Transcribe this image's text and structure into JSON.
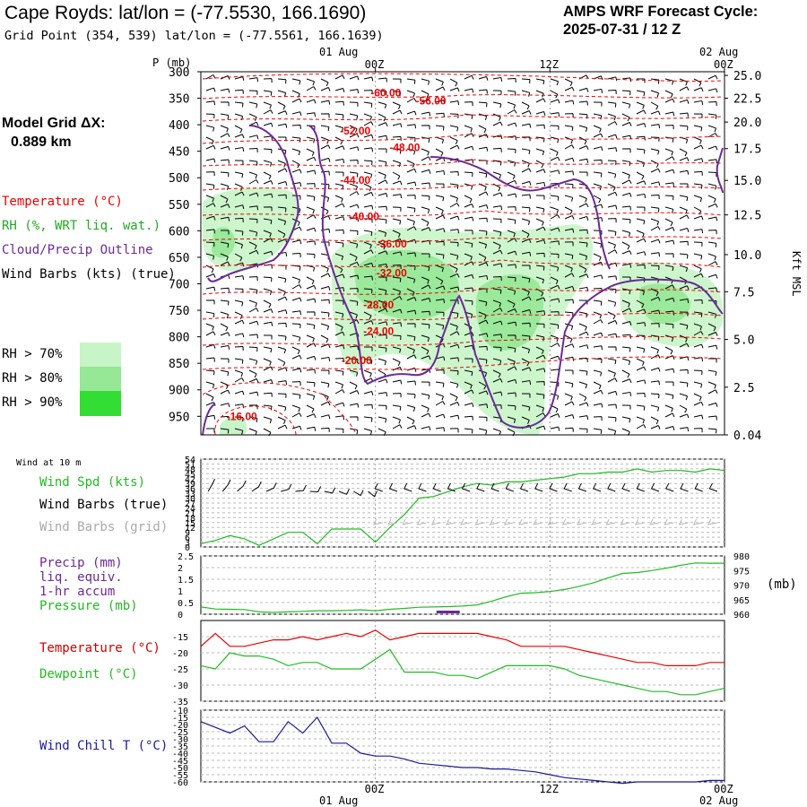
{
  "header": {
    "title": "Cape Royds:  lat/lon = (-77.5530, 166.1690)",
    "subtitle": "Grid Point (354, 539) lat/lon = (-77.5561, 166.1639)",
    "cycle_line1": "AMPS WRF Forecast Cycle:",
    "cycle_line2": "2025-07-31 / 12  Z"
  },
  "model_grid": {
    "line1": "Model Grid ΔX:",
    "line2": "0.889 km"
  },
  "legend": {
    "temperature": "Temperature (°C)",
    "rh": "RH (%, WRT liq. wat.)",
    "cloud": "Cloud/Precip Outline",
    "wind": "Wind Barbs (kts) (true)",
    "rh70": "RH > 70%",
    "rh80": "RH > 80%",
    "rh90": "RH > 90%"
  },
  "colors": {
    "temp": "#ee0000",
    "rh70": "#c8f5c8",
    "rh80": "#96e896",
    "rh90": "#33dd33",
    "cloud": "#6a2a96",
    "green": "#22bb22",
    "navy": "#1a1a9a",
    "purple": "#6a2a96",
    "grid": "#aaaaaa"
  },
  "time_axis": {
    "top_date_left": "01 Aug",
    "top_date_right": "02 Aug",
    "bottom_date_left": "01 Aug",
    "bottom_date_right": "02 Aug",
    "ticks": [
      {
        "hour": 12,
        "label": "00Z"
      },
      {
        "hour": 24,
        "label": "12Z"
      },
      {
        "hour": 36,
        "label": "00Z"
      }
    ]
  },
  "chart_data": [
    {
      "type": "heatmap",
      "panel": "upper-air",
      "xlabel": "",
      "ylabel": "P (mb)",
      "right_label": "Kft MSL",
      "xlim": [
        0,
        36
      ],
      "ylim": [
        300,
        985
      ],
      "y_ticks": [
        300,
        350,
        400,
        450,
        500,
        550,
        600,
        650,
        700,
        750,
        800,
        850,
        900,
        950
      ],
      "right_ticks": [
        {
          "p": 307,
          "label": "25.0"
        },
        {
          "p": 350,
          "label": "22.5"
        },
        {
          "p": 395,
          "label": "20.0"
        },
        {
          "p": 445,
          "label": "17.5"
        },
        {
          "p": 505,
          "label": "15.0"
        },
        {
          "p": 570,
          "label": "12.5"
        },
        {
          "p": 645,
          "label": "10.0"
        },
        {
          "p": 715,
          "label": "7.5"
        },
        {
          "p": 805,
          "label": "5.0"
        },
        {
          "p": 895,
          "label": "2.5"
        },
        {
          "p": 985,
          "label": "0.04"
        }
      ],
      "temperature_labels": [
        {
          "text": "-60.00",
          "hour": 12.9,
          "p": 340
        },
        {
          "text": "-56.00",
          "hour": 16.0,
          "p": 355
        },
        {
          "text": "-52.00",
          "hour": 10.8,
          "p": 412
        },
        {
          "text": "-48.00",
          "hour": 14.2,
          "p": 443
        },
        {
          "text": "-44.00",
          "hour": 10.8,
          "p": 505
        },
        {
          "text": "-40.00",
          "hour": 11.4,
          "p": 573
        },
        {
          "text": "-36.00",
          "hour": 13.3,
          "p": 625
        },
        {
          "text": "-32.00",
          "hour": 13.3,
          "p": 680
        },
        {
          "text": "-28.00",
          "hour": 12.4,
          "p": 740
        },
        {
          "text": "-24.00",
          "hour": 12.4,
          "p": 790
        },
        {
          "text": "-20.00",
          "hour": 10.9,
          "p": 845
        },
        {
          "text": "-16.00",
          "hour": 3.0,
          "p": 950
        }
      ]
    },
    {
      "type": "line",
      "panel": "wind",
      "title": "Wind at 10 m",
      "ylim": [
        0,
        54
      ],
      "y_ticks": [
        0,
        3,
        6,
        9,
        12,
        15,
        18,
        21,
        24,
        27,
        30,
        33,
        36,
        39,
        42,
        45,
        48,
        51,
        54
      ],
      "series": [
        {
          "name": "Wind Spd (kts)",
          "x": [
            0,
            1,
            2,
            3,
            4,
            5,
            6,
            7,
            8,
            9,
            10,
            11,
            12,
            13,
            14,
            15,
            16,
            17,
            18,
            19,
            20,
            21,
            22,
            23,
            24,
            25,
            26,
            27,
            28,
            29,
            30,
            31,
            32,
            33,
            34,
            35,
            36
          ],
          "values": [
            2,
            4,
            7,
            5,
            1,
            5,
            9,
            9,
            2,
            11,
            11,
            11,
            3,
            12,
            20,
            30,
            31,
            34,
            37,
            39,
            38,
            40,
            40,
            41,
            42,
            43,
            45,
            45,
            46,
            46,
            48,
            46,
            47,
            47,
            46,
            48,
            47
          ]
        }
      ],
      "labels": {
        "spd": "Wind Spd (kts)",
        "barbs_true": "Wind Barbs (true)",
        "barbs_grid": "Wind Barbs (grid)"
      }
    },
    {
      "type": "line",
      "panel": "precip-pressure",
      "ylim": [
        0,
        2.5
      ],
      "y_ticks": [
        0.0,
        0.5,
        1.0,
        1.5,
        2.0,
        2.5
      ],
      "right_ticks": [
        960,
        965,
        970,
        975,
        980
      ],
      "right_unit": "(mb)",
      "series": [
        {
          "name": "Pressure (mb)",
          "x": [
            0,
            1,
            2,
            3,
            4,
            5,
            6,
            7,
            8,
            9,
            10,
            11,
            12,
            13,
            14,
            15,
            16,
            17,
            18,
            19,
            20,
            21,
            22,
            23,
            24,
            25,
            26,
            27,
            28,
            29,
            30,
            31,
            32,
            33,
            34,
            35,
            36
          ],
          "values": [
            962.5,
            961.8,
            961.7,
            961.6,
            960.8,
            960.6,
            960.8,
            961.0,
            961.2,
            961.2,
            961.3,
            961.5,
            961.2,
            961.7,
            962.0,
            962.4,
            962.5,
            962.6,
            962.8,
            963.2,
            964.5,
            966.0,
            967.2,
            967.4,
            967.8,
            968.5,
            969.5,
            970.8,
            972.5,
            974.0,
            974.3,
            975.0,
            975.8,
            976.8,
            977.6,
            977.5,
            977.5
          ]
        },
        {
          "name": "Precip (mm) liq. equiv. 1-hr accum",
          "x": [
            16.2,
            17.8
          ],
          "values": [
            0.03,
            0.03
          ]
        }
      ],
      "labels": {
        "precip1": "Precip (mm)",
        "precip2": "liq. equiv.",
        "precip3": "1-hr accum",
        "pressure": "Pressure (mb)"
      }
    },
    {
      "type": "line",
      "panel": "temperature",
      "ylim": [
        -35,
        -10
      ],
      "y_ticks": [
        -35,
        -30,
        -25,
        -20,
        -15
      ],
      "series": [
        {
          "name": "Temperature (°C)",
          "x": [
            0,
            1,
            2,
            3,
            4,
            5,
            6,
            7,
            8,
            9,
            10,
            11,
            12,
            13,
            14,
            15,
            16,
            17,
            18,
            19,
            20,
            21,
            22,
            23,
            24,
            25,
            26,
            27,
            28,
            29,
            30,
            31,
            32,
            33,
            34,
            35,
            36
          ],
          "values": [
            -18,
            -14,
            -18,
            -18,
            -17,
            -16,
            -16,
            -15,
            -16,
            -15,
            -14,
            -15,
            -13,
            -16,
            -15,
            -14,
            -14,
            -14,
            -14,
            -14,
            -15,
            -16,
            -18,
            -18,
            -18,
            -18,
            -19,
            -20,
            -21,
            -22,
            -23,
            -23,
            -24,
            -24,
            -24,
            -23,
            -23
          ]
        },
        {
          "name": "Dewpoint (°C)",
          "x": [
            0,
            1,
            2,
            3,
            4,
            5,
            6,
            7,
            8,
            9,
            10,
            11,
            12,
            13,
            14,
            15,
            16,
            17,
            18,
            19,
            20,
            21,
            22,
            23,
            24,
            25,
            26,
            27,
            28,
            29,
            30,
            31,
            32,
            33,
            34,
            35,
            36
          ],
          "values": [
            -24,
            -25,
            -20,
            -21,
            -21,
            -22,
            -24,
            -23,
            -23,
            -25,
            -25,
            -25,
            -22,
            -19,
            -26,
            -26,
            -26,
            -27,
            -27,
            -28,
            -26,
            -24,
            -24,
            -24,
            -24,
            -25,
            -27,
            -28,
            -29,
            -30,
            -31,
            -32,
            -32,
            -33,
            -33,
            -32,
            -31
          ]
        }
      ]
    },
    {
      "type": "line",
      "panel": "wind-chill",
      "ylim": [
        -60,
        -10
      ],
      "y_ticks": [
        -60,
        -55,
        -50,
        -45,
        -40,
        -35,
        -30,
        -25,
        -20,
        -15,
        -10
      ],
      "series": [
        {
          "name": "Wind Chill T (°C)",
          "x": [
            0,
            1,
            2,
            3,
            4,
            5,
            6,
            7,
            8,
            9,
            10,
            11,
            12,
            13,
            14,
            15,
            16,
            17,
            18,
            19,
            20,
            21,
            22,
            23,
            24,
            25,
            26,
            27,
            28,
            29,
            30,
            31,
            32,
            33,
            34,
            35,
            36
          ],
          "values": [
            -18,
            -22,
            -26,
            -21,
            -32,
            -32,
            -18,
            -26,
            -15,
            -33,
            -33,
            -40,
            -42,
            -42,
            -44,
            -47,
            -48,
            -49,
            -50,
            -50,
            -51,
            -51,
            -52,
            -53,
            -55,
            -57,
            -58,
            -59,
            -60,
            -61,
            -60,
            -60,
            -60,
            -60,
            -60,
            -59,
            -59
          ]
        }
      ]
    }
  ]
}
